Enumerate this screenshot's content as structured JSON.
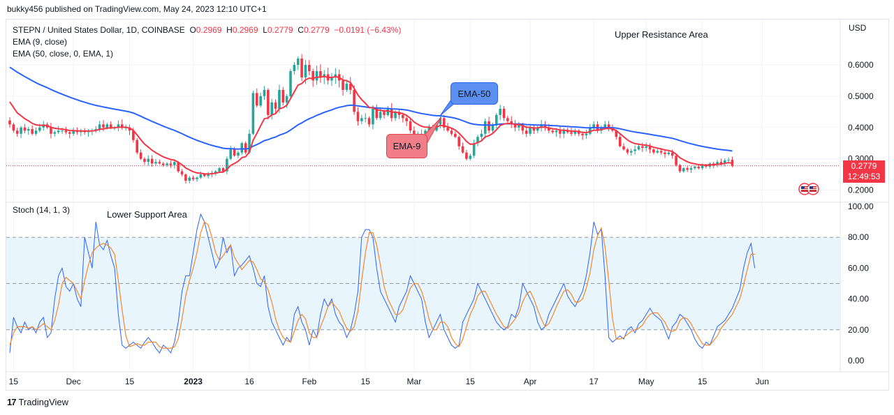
{
  "header": {
    "publisher_text": "bukky456 published on TradingView.com, May 24, 2023 12:10 UTC+1"
  },
  "legend": {
    "symbol": "STEPN / United States Dollar, 1D, COINBASE",
    "o_label": "O",
    "o_value": "0.2969",
    "h_label": "H",
    "h_value": "0.2969",
    "l_label": "L",
    "l_value": "0.2779",
    "c_label": "C",
    "c_value": "0.2779",
    "change": "−0.0191 (−6.43%)",
    "ema9": "EMA (9, close)",
    "ema50": "EMA (50, close, 0, EMA, 1)"
  },
  "annotations": {
    "upper": "Upper Resistance Area",
    "lower": "Lower Support Area",
    "ema50_callout": "EMA-50",
    "ema9_callout": "EMA-9"
  },
  "price_tag": {
    "price": "0.2779",
    "countdown": "12:49:53"
  },
  "stoch_label": "Stoch (14, 1, 3)",
  "footer": {
    "brand": "TradingView"
  },
  "colors": {
    "up": "#26a69a",
    "down": "#f23645",
    "ema9": "#f23645",
    "ema50": "#2962ff",
    "k": "#2962ff",
    "d": "#f7862b",
    "band": "#e3f2fd",
    "grid": "#f0f3fa"
  },
  "chart_data": [
    {
      "type": "candlestick",
      "title": "STEPN / United States Dollar, 1D, COINBASE",
      "ylabel": "USD",
      "ylim": [
        0.18,
        0.72
      ],
      "y_ticks": [
        "0.6000",
        "0.5000",
        "0.4000",
        "0.3000",
        "0.2000"
      ],
      "y_tick_values": [
        0.6,
        0.5,
        0.4,
        0.3,
        0.2
      ],
      "x_ticks": [
        "15",
        "Dec",
        "15",
        "2023",
        "16",
        "Feb",
        "15",
        "Mar",
        "15",
        "Apr",
        "17",
        "May",
        "15",
        "Jun"
      ],
      "x_tick_days": [
        1,
        17,
        32,
        49,
        64,
        80,
        95,
        108,
        123,
        139,
        156,
        170,
        185,
        201
      ],
      "current_price": 0.2779,
      "closes": [
        0.41,
        0.39,
        0.38,
        0.4,
        0.39,
        0.395,
        0.38,
        0.39,
        0.4,
        0.41,
        0.4,
        0.38,
        0.385,
        0.39,
        0.39,
        0.385,
        0.38,
        0.39,
        0.385,
        0.39,
        0.385,
        0.39,
        0.39,
        0.395,
        0.41,
        0.4,
        0.41,
        0.4,
        0.4,
        0.41,
        0.4,
        0.4,
        0.39,
        0.36,
        0.32,
        0.3,
        0.29,
        0.3,
        0.285,
        0.29,
        0.285,
        0.28,
        0.285,
        0.28,
        0.29,
        0.26,
        0.25,
        0.23,
        0.24,
        0.235,
        0.24,
        0.25,
        0.245,
        0.25,
        0.255,
        0.26,
        0.27,
        0.26,
        0.3,
        0.33,
        0.31,
        0.32,
        0.35,
        0.32,
        0.38,
        0.51,
        0.47,
        0.5,
        0.52,
        0.44,
        0.48,
        0.46,
        0.52,
        0.48,
        0.5,
        0.58,
        0.6,
        0.62,
        0.56,
        0.6,
        0.58,
        0.55,
        0.58,
        0.56,
        0.57,
        0.55,
        0.56,
        0.57,
        0.55,
        0.52,
        0.54,
        0.52,
        0.45,
        0.42,
        0.43,
        0.43,
        0.41,
        0.46,
        0.43,
        0.45,
        0.44,
        0.46,
        0.43,
        0.45,
        0.44,
        0.43,
        0.42,
        0.39,
        0.37,
        0.38,
        0.38,
        0.39,
        0.4,
        0.39,
        0.41,
        0.43,
        0.4,
        0.39,
        0.38,
        0.37,
        0.34,
        0.32,
        0.3,
        0.31,
        0.35,
        0.37,
        0.38,
        0.42,
        0.39,
        0.41,
        0.44,
        0.46,
        0.43,
        0.42,
        0.41,
        0.4,
        0.41,
        0.39,
        0.38,
        0.4,
        0.39,
        0.4,
        0.41,
        0.4,
        0.39,
        0.385,
        0.39,
        0.38,
        0.39,
        0.385,
        0.38,
        0.39,
        0.38,
        0.375,
        0.38,
        0.4,
        0.41,
        0.39,
        0.4,
        0.41,
        0.4,
        0.39,
        0.37,
        0.34,
        0.33,
        0.32,
        0.325,
        0.33,
        0.34,
        0.335,
        0.34,
        0.33,
        0.32,
        0.325,
        0.32,
        0.315,
        0.32,
        0.31,
        0.28,
        0.26,
        0.27,
        0.265,
        0.27,
        0.275,
        0.27,
        0.28,
        0.275,
        0.285,
        0.28,
        0.29,
        0.285,
        0.295,
        0.2969,
        0.2779
      ],
      "ema9_label": "EMA (9, close)",
      "ema50_label": "EMA (50, close, 0, EMA, 1)"
    },
    {
      "type": "line",
      "title": "Stoch (14, 1, 3)",
      "ylim": [
        -5,
        100
      ],
      "y_ticks": [
        "100.00",
        "80.00",
        "60.00",
        "40.00",
        "20.00",
        "0.00"
      ],
      "y_tick_values": [
        100,
        80,
        60,
        40,
        20,
        0
      ],
      "band": [
        20,
        80
      ],
      "k_values": [
        5,
        28,
        22,
        18,
        25,
        20,
        22,
        18,
        25,
        28,
        15,
        18,
        40,
        55,
        60,
        48,
        45,
        50,
        40,
        35,
        80,
        70,
        60,
        90,
        75,
        72,
        78,
        68,
        60,
        30,
        10,
        8,
        10,
        12,
        10,
        8,
        12,
        15,
        12,
        8,
        5,
        10,
        8,
        5,
        12,
        25,
        45,
        55,
        55,
        70,
        85,
        95,
        90,
        80,
        70,
        60,
        65,
        80,
        70,
        75,
        55,
        60,
        62,
        65,
        68,
        60,
        50,
        48,
        55,
        35,
        25,
        20,
        15,
        10,
        15,
        12,
        30,
        35,
        25,
        20,
        10,
        20,
        15,
        30,
        40,
        35,
        40,
        30,
        25,
        22,
        15,
        20,
        30,
        45,
        80,
        85,
        85,
        80,
        60,
        45,
        40,
        35,
        30,
        25,
        35,
        40,
        45,
        55,
        50,
        45,
        40,
        25,
        15,
        20,
        25,
        30,
        20,
        15,
        10,
        8,
        10,
        25,
        30,
        35,
        40,
        50,
        45,
        40,
        35,
        30,
        25,
        22,
        20,
        22,
        30,
        28,
        35,
        50,
        45,
        40,
        35,
        25,
        20,
        22,
        30,
        35,
        40,
        45,
        50,
        42,
        38,
        35,
        40,
        45,
        55,
        70,
        90,
        82,
        85,
        55,
        15,
        12,
        14,
        16,
        14,
        20,
        22,
        18,
        24,
        26,
        30,
        34,
        30,
        28,
        26,
        20,
        14,
        22,
        25,
        30,
        28,
        24,
        20,
        14,
        10,
        8,
        12,
        10,
        16,
        22,
        24,
        26,
        30,
        34,
        40,
        46,
        60,
        70,
        76,
        60
      ],
      "d_values": [
        10,
        18,
        22,
        22,
        22,
        21,
        22,
        20,
        22,
        24,
        22,
        20,
        26,
        36,
        50,
        54,
        52,
        50,
        45,
        40,
        52,
        62,
        70,
        73,
        75,
        76,
        75,
        73,
        69,
        52,
        33,
        16,
        9,
        10,
        11,
        10,
        10,
        12,
        12,
        12,
        9,
        8,
        8,
        8,
        9,
        14,
        27,
        42,
        52,
        60,
        70,
        83,
        90,
        88,
        80,
        70,
        65,
        68,
        72,
        75,
        67,
        63,
        59,
        62,
        65,
        64,
        59,
        53,
        51,
        46,
        38,
        27,
        20,
        15,
        13,
        12,
        19,
        26,
        30,
        27,
        18,
        15,
        15,
        22,
        28,
        35,
        38,
        35,
        32,
        26,
        21,
        19,
        22,
        32,
        52,
        70,
        83,
        83,
        75,
        62,
        48,
        40,
        35,
        30,
        30,
        33,
        40,
        47,
        50,
        50,
        45,
        37,
        27,
        20,
        20,
        25,
        25,
        22,
        15,
        11,
        9,
        14,
        22,
        30,
        35,
        42,
        45,
        45,
        40,
        35,
        30,
        26,
        22,
        21,
        24,
        27,
        31,
        38,
        43,
        45,
        40,
        33,
        27,
        22,
        24,
        29,
        35,
        40,
        45,
        46,
        43,
        38,
        38,
        40,
        47,
        57,
        72,
        81,
        86,
        74,
        52,
        27,
        14,
        14,
        15,
        17,
        19,
        20,
        21,
        23,
        27,
        30,
        31,
        31,
        28,
        25,
        20,
        19,
        20,
        26,
        28,
        27,
        24,
        19,
        15,
        11,
        10,
        10,
        13,
        16,
        21,
        24,
        27,
        30,
        35,
        40,
        49,
        59,
        69,
        69
      ]
    }
  ]
}
